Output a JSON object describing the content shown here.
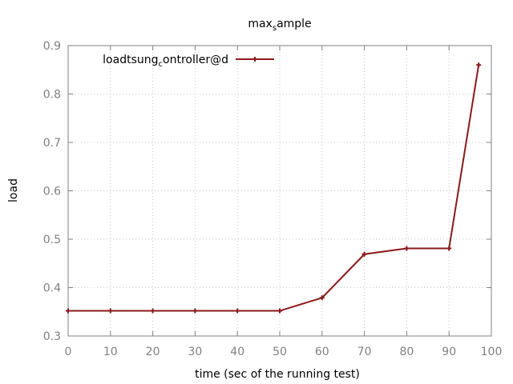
{
  "chart_data": {
    "type": "line",
    "title": "max_sample",
    "title_main": "max",
    "title_sub": "s",
    "title_rest": "ample",
    "xlabel": "time (sec of the running test)",
    "ylabel": "load",
    "xlim": [
      0,
      100
    ],
    "ylim": [
      0.3,
      0.9
    ],
    "x_ticks": [
      "0",
      "10",
      "20",
      "30",
      "40",
      "50",
      "60",
      "70",
      "80",
      "90",
      "100"
    ],
    "y_ticks": [
      "0.3",
      "0.4",
      "0.5",
      "0.6",
      "0.7",
      "0.8",
      "0.9"
    ],
    "grid": true,
    "legend_position": "top-left",
    "series": [
      {
        "name": "loadtsung_controller@d",
        "legend_main": "loadtsung",
        "legend_sub": "c",
        "legend_rest": "ontroller@d",
        "color": "#8b1a1a",
        "marker": "plus",
        "x": [
          0,
          10,
          20,
          30,
          40,
          50,
          60,
          70,
          80,
          90,
          97
        ],
        "y": [
          0.352,
          0.352,
          0.352,
          0.352,
          0.352,
          0.352,
          0.379,
          0.469,
          0.481,
          0.481,
          0.86
        ]
      }
    ]
  }
}
